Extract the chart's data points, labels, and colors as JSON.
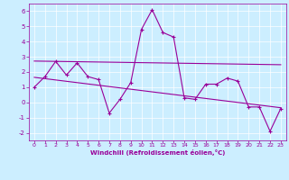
{
  "xlabel": "Windchill (Refroidissement éolien,°C)",
  "xlim": [
    -0.5,
    23.5
  ],
  "ylim": [
    -2.5,
    6.5
  ],
  "xticks": [
    0,
    1,
    2,
    3,
    4,
    5,
    6,
    7,
    8,
    9,
    10,
    11,
    12,
    13,
    14,
    15,
    16,
    17,
    18,
    19,
    20,
    21,
    22,
    23
  ],
  "yticks": [
    -2,
    -1,
    0,
    1,
    2,
    3,
    4,
    5,
    6
  ],
  "bg_color": "#cceeff",
  "line_color": "#990099",
  "line1_x": [
    0,
    1,
    2,
    3,
    4,
    5,
    6,
    7,
    8,
    9,
    10,
    11,
    12,
    13,
    14,
    15,
    16,
    17,
    18,
    19,
    20,
    21,
    22,
    23
  ],
  "line1_y": [
    1.0,
    1.7,
    2.7,
    1.8,
    2.6,
    1.7,
    1.5,
    -0.7,
    0.2,
    1.3,
    4.8,
    6.1,
    4.6,
    4.3,
    0.3,
    0.2,
    1.2,
    1.2,
    1.6,
    1.4,
    -0.3,
    -0.3,
    -1.9,
    -0.4
  ],
  "trend1_x": [
    0,
    23
  ],
  "trend1_y": [
    2.72,
    2.48
  ],
  "trend2_x": [
    0,
    23
  ],
  "trend2_y": [
    1.65,
    -0.35
  ]
}
